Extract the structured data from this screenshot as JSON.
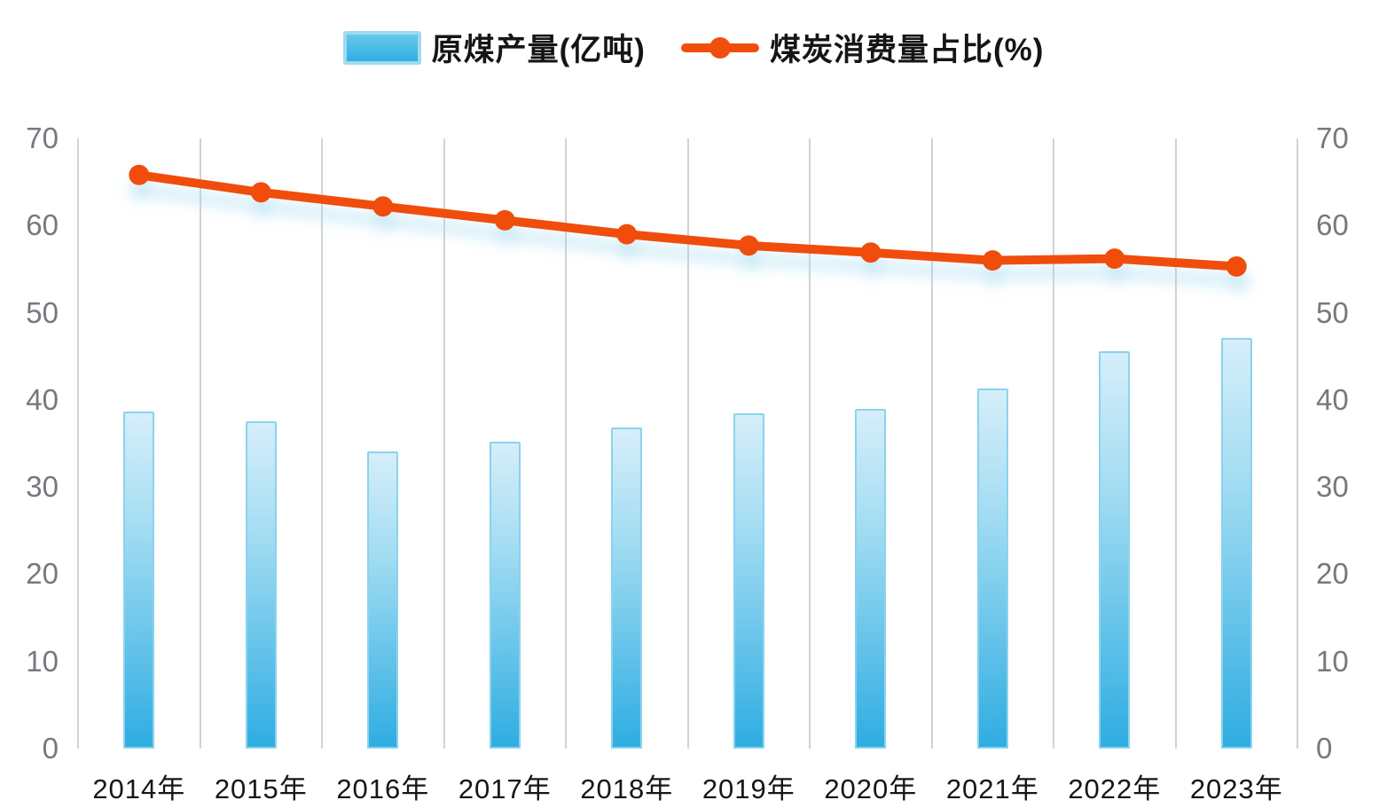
{
  "chart_data": {
    "type": "bar",
    "title": "",
    "categories": [
      "2014年",
      "2015年",
      "2016年",
      "2017年",
      "2018年",
      "2019年",
      "2020年",
      "2021年",
      "2022年",
      "2023年"
    ],
    "series": [
      {
        "name": "原煤产量(亿吨)",
        "type": "bar",
        "axis": "left",
        "values": [
          38.7,
          37.5,
          34.1,
          35.2,
          36.8,
          38.5,
          39.0,
          41.3,
          45.6,
          47.1
        ]
      },
      {
        "name": "煤炭消费量占比(%)",
        "type": "line",
        "axis": "right",
        "values": [
          65.8,
          63.8,
          62.2,
          60.6,
          59.0,
          57.7,
          56.9,
          56.0,
          56.2,
          55.3
        ]
      }
    ],
    "left_axis_ticks": [
      "0",
      "10",
      "20",
      "30",
      "40",
      "50",
      "60",
      "70"
    ],
    "right_axis_ticks": [
      "0",
      "10",
      "20",
      "30",
      "40",
      "50",
      "60",
      "70"
    ],
    "ylim": [
      0,
      70
    ],
    "grid": "vertical-only",
    "legend_position": "top-center"
  },
  "legend": {
    "bar_label": "原煤产量(亿吨)",
    "line_label": "煤炭消费量占比(%)"
  },
  "colors": {
    "bar_gradient_top": "#d6eefa",
    "bar_gradient_bottom": "#2fade2",
    "bar_border": "#8ad3ee",
    "line": "#f04e0d",
    "line_glow": "#9ed8ef",
    "gridline": "#d2d2d2",
    "y_label_text": "#75797e",
    "x_label_text": "#161616"
  }
}
